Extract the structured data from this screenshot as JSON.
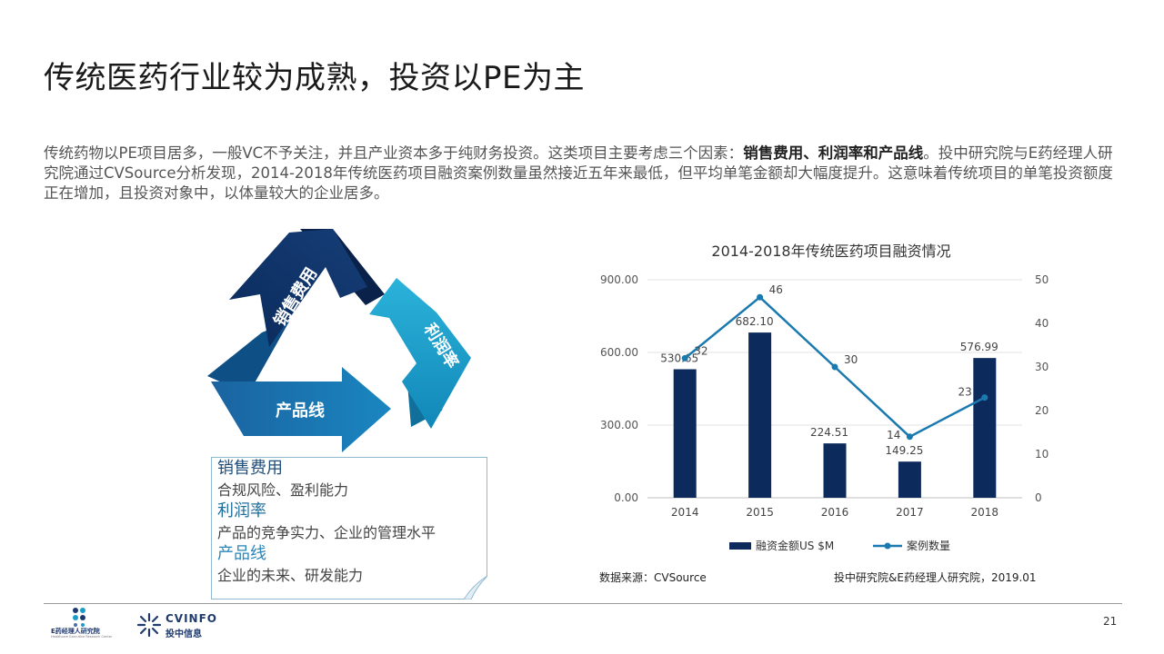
{
  "page": {
    "title": "传统医药行业较为成熟，投资以PE为主",
    "intro_part1": "传统药物以PE项目居多，一般VC不予关注，并且产业资本多于纯财务投资。这类项目主要考虑三个因素：",
    "intro_bold": "销售费用、利润率和产品线",
    "intro_part2": "。投中研究院与E药经理人研究院通过CVSource分析发现，2014-2018年传统医药项目融资案例数量虽然接近五年来最低，但平均单笔金额却大幅度提升。这意味着传统项目的单笔投资额度正在增加，且投资对象中，以体量较大的企业居多。",
    "page_number": "21"
  },
  "cycle": {
    "arrow1": "销售费用",
    "arrow2": "利润率",
    "arrow3": "产品线",
    "colors": [
      "#0d2c5e",
      "#1a9dc8",
      "#1572ad"
    ]
  },
  "note": {
    "h1": "销售费用",
    "t1": "合规风险、盈利能力",
    "h2": "利润率",
    "t2": "产品的竞争实力、企业的管理水平",
    "h3": "产品线",
    "t3": "企业的未来、研发能力"
  },
  "chart_data": {
    "type": "bar+line",
    "title": "2014-2018年传统医药项目融资情况",
    "categories": [
      "2014",
      "2015",
      "2016",
      "2017",
      "2018"
    ],
    "series": [
      {
        "name": "融资金额US $M",
        "type": "bar",
        "axis": "left",
        "values": [
          530.65,
          682.1,
          224.51,
          149.25,
          576.99
        ],
        "labels": [
          "530.65",
          "682.10",
          "224.51",
          "149.25",
          "576.99"
        ],
        "color": "#0d2a5c"
      },
      {
        "name": "案例数量",
        "type": "line",
        "axis": "right",
        "values": [
          32,
          46,
          30,
          14,
          23
        ],
        "labels": [
          "32",
          "46",
          "30",
          "14",
          "23"
        ],
        "color": "#1a7ab0"
      }
    ],
    "left_axis": {
      "ticks": [
        "0.00",
        "300.00",
        "600.00",
        "900.00"
      ],
      "range": [
        0,
        900
      ]
    },
    "right_axis": {
      "ticks": [
        "0",
        "10",
        "20",
        "30",
        "40",
        "50"
      ],
      "range": [
        0,
        50
      ]
    },
    "grid": true,
    "legend": "bottom"
  },
  "footer": {
    "source": "数据来源：CVSource",
    "credit": "投中研究院&E药经理人研究院，2019.01",
    "logo1_text": "E药经理人研究院",
    "logo1_sub": "Healthcare Executive Research Center",
    "logo2_brand": "CVINFO",
    "logo2_text": "投中信息"
  }
}
